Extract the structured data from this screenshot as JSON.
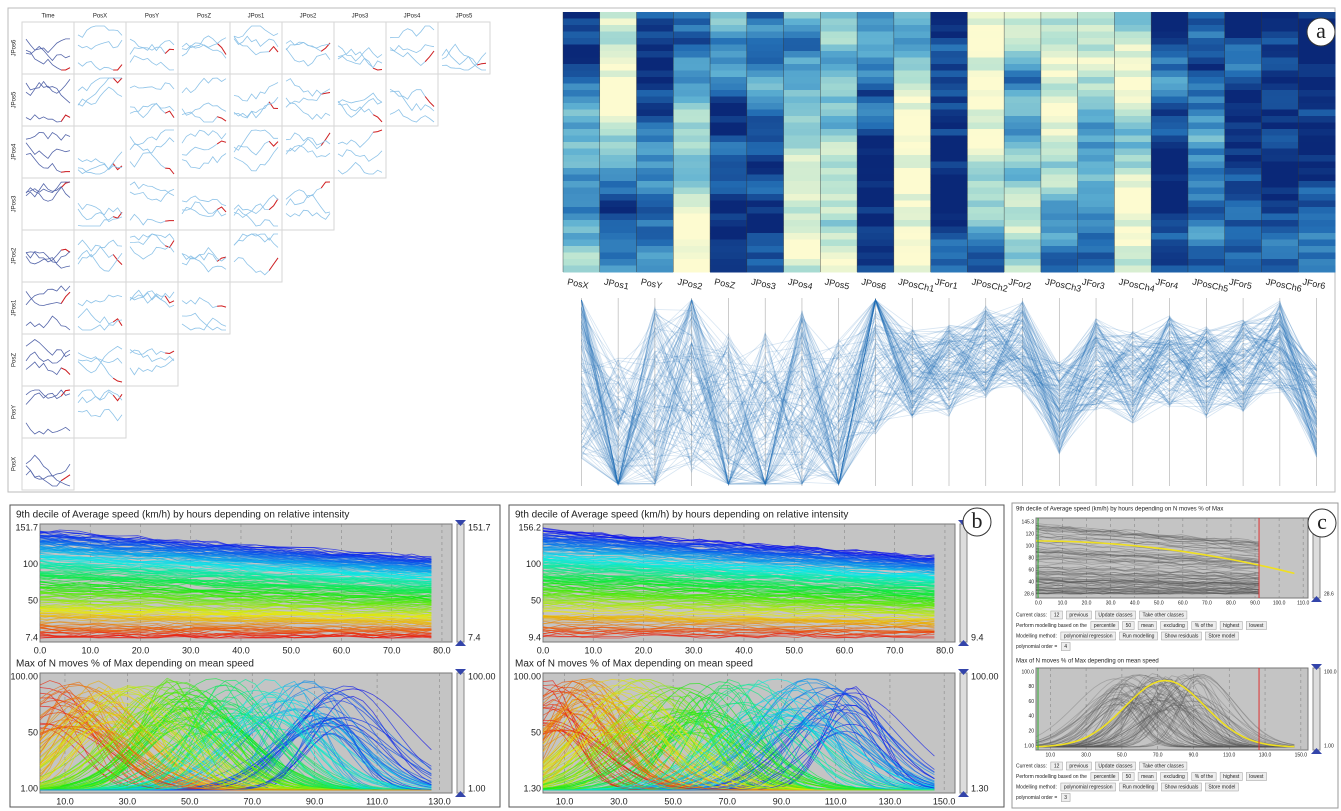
{
  "scatter_matrix": {
    "columns": [
      "Time",
      "PosX",
      "PosY",
      "PosZ",
      "JPos1",
      "JPos2",
      "JPos3",
      "JPos4",
      "JPos5"
    ],
    "rows": [
      "JPos6",
      "JPos5",
      "JPos4",
      "JPos3",
      "JPos2",
      "JPos1",
      "PosZ",
      "PosY",
      "PosX"
    ]
  },
  "heatmap": {
    "axes": [
      "PosX",
      "JPos1",
      "PosY",
      "JPos2",
      "PosZ",
      "JPos3",
      "JPos4",
      "JPos5",
      "JPos6",
      "JPosCh1",
      "JFor1",
      "JPosCh2",
      "JFor2",
      "JPosCh3",
      "JFor3",
      "JPosCh4",
      "JFor4",
      "JPosCh5",
      "JFor5",
      "JPosCh6",
      "JFor6"
    ]
  },
  "panel_labels": [
    "a",
    "b",
    "c"
  ],
  "panel_b": {
    "left": {
      "top": {
        "title": "9th decile of Average speed (km/h) by hours depending on relative intensity",
        "yticks": [
          "151.7",
          "100",
          "50",
          "7.4"
        ],
        "slider": [
          "151.7",
          "7.4"
        ],
        "xticks": [
          "0.0",
          "10.0",
          "20.0",
          "30.0",
          "40.0",
          "50.0",
          "60.0",
          "70.0",
          "80.0"
        ]
      },
      "bottom": {
        "title": "Max of N moves % of Max depending on mean speed",
        "yticks": [
          "100.00",
          "50",
          "1.00"
        ],
        "slider": [
          "100.00",
          "1.00"
        ],
        "xticks": [
          "10.0",
          "30.0",
          "50.0",
          "70.0",
          "90.0",
          "110.0",
          "130.0"
        ]
      }
    },
    "right": {
      "top": {
        "title": "9th decile of Average speed (km/h) by hours depending on relative intensity",
        "yticks": [
          "156.2",
          "100",
          "50",
          "9.4"
        ],
        "slider": [
          "9.4"
        ],
        "xticks": [
          "0.0",
          "10.0",
          "20.0",
          "30.0",
          "40.0",
          "50.0",
          "60.0",
          "70.0",
          "80.0"
        ]
      },
      "bottom": {
        "title": "Max of N moves % of Max depending on mean speed",
        "yticks": [
          "100.00",
          "50",
          "1.30"
        ],
        "slider": [
          "100.00",
          "1.30"
        ],
        "xticks": [
          "10.0",
          "30.0",
          "50.0",
          "70.0",
          "90.0",
          "110.0",
          "130.0",
          "150.0"
        ]
      }
    }
  },
  "panel_c": {
    "top": {
      "title": "9th decile of Average speed (km/h) by hours depending on N moves % of Max",
      "yticks": [
        "145.3",
        "120",
        "100",
        "80",
        "60",
        "40",
        "28.6"
      ],
      "slider": [
        "28.6"
      ],
      "xticks": [
        "0.0",
        "10.0",
        "20.0",
        "30.0",
        "40.0",
        "50.0",
        "60.0",
        "70.0",
        "80.0",
        "90.0",
        "100.0",
        "110.0"
      ],
      "controls": [
        [
          "Current class:",
          "12",
          "previous",
          "Update classes",
          "Take other classes"
        ],
        [
          "Perform modelling based on the",
          "percentile",
          "50",
          "mean",
          "excluding",
          "% of the",
          "highest",
          "lowest"
        ],
        [
          "Modelling method:",
          "polynomial regression",
          "Run modelling",
          "Show residuals",
          "Store model"
        ],
        [
          "polynomial order =",
          "4"
        ]
      ]
    },
    "bottom": {
      "title": "Max of N moves % of Max depending on mean speed",
      "yticks": [
        "100.0",
        "80",
        "60",
        "40",
        "20",
        "1.00"
      ],
      "slider": [
        "100.0",
        "1.00"
      ],
      "xticks": [
        "10.0",
        "30.0",
        "50.0",
        "70.0",
        "90.0",
        "110.0",
        "130.0",
        "150.0"
      ],
      "controls": [
        [
          "Current class:",
          "12",
          "previous",
          "Update classes",
          "Take other classes"
        ],
        [
          "Perform modelling based on the",
          "percentile",
          "50",
          "mean",
          "excluding",
          "% of the",
          "highest",
          "lowest"
        ],
        [
          "Modelling method:",
          "polynomial regression",
          "Run modelling",
          "Show residuals",
          "Store model"
        ],
        [
          "polynomial order =",
          "3"
        ]
      ]
    }
  }
}
